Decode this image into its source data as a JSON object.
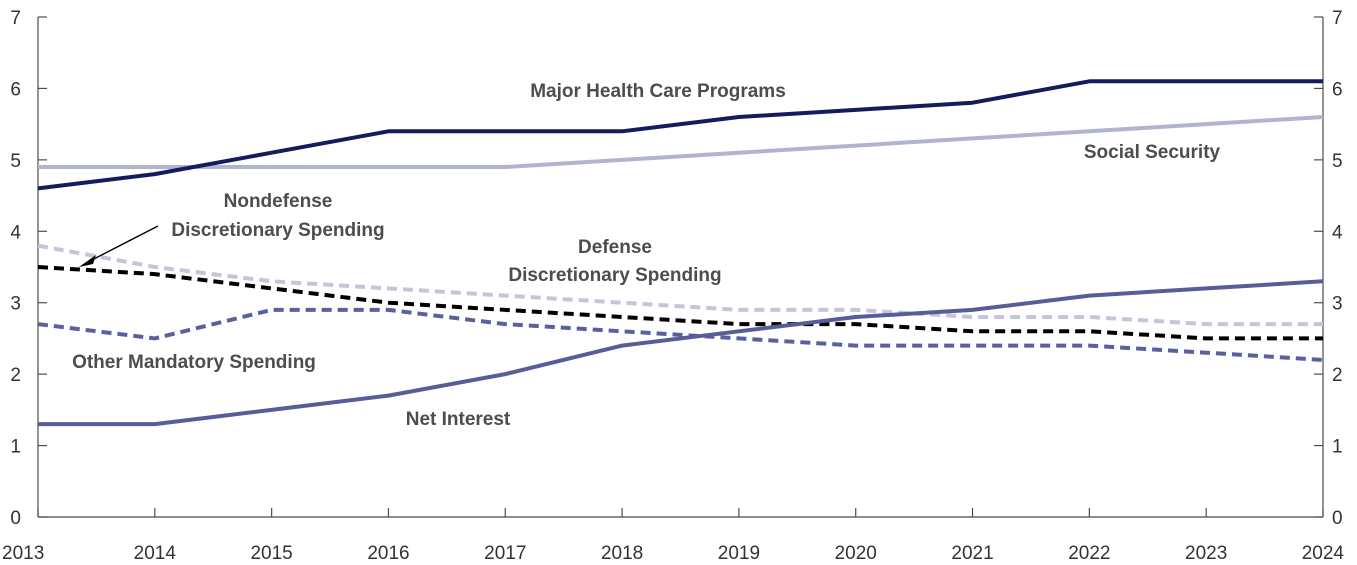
{
  "chart_data": {
    "type": "line",
    "x": [
      2013,
      2014,
      2015,
      2016,
      2017,
      2018,
      2019,
      2020,
      2021,
      2022,
      2023,
      2024
    ],
    "x_tick_labels": [
      "2013",
      "2014",
      "2015",
      "2016",
      "2017",
      "2018",
      "2019",
      "2020",
      "2021",
      "2022",
      "2023",
      "2024"
    ],
    "ylim": [
      0,
      7
    ],
    "y_ticks_left": [
      "0",
      "1",
      "2",
      "3",
      "4",
      "5",
      "6",
      "7"
    ],
    "y_ticks_right": [
      "0",
      "1",
      "2",
      "3",
      "4",
      "5",
      "6",
      "7"
    ],
    "grid": false,
    "series": [
      {
        "name": "Major Health Care Programs",
        "label": "Major Health Care Programs",
        "color": "#141b5e",
        "dash": "solid",
        "values": [
          4.6,
          4.8,
          5.1,
          5.4,
          5.4,
          5.4,
          5.6,
          5.7,
          5.8,
          6.1,
          6.1,
          6.1
        ]
      },
      {
        "name": "Social Security",
        "label": "Social Security",
        "color": "#b1b4cf",
        "dash": "solid",
        "values": [
          4.9,
          4.9,
          4.9,
          4.9,
          4.9,
          5.0,
          5.1,
          5.2,
          5.3,
          5.4,
          5.5,
          5.6
        ]
      },
      {
        "name": "Nondefense Discretionary Spending",
        "label_lines": [
          "Nondefense",
          "Discretionary Spending"
        ],
        "color": "#000000",
        "dash": "dashed",
        "values": [
          3.5,
          3.4,
          3.2,
          3.0,
          2.9,
          2.8,
          2.7,
          2.7,
          2.6,
          2.6,
          2.5,
          2.5
        ]
      },
      {
        "name": "Defense Discretionary Spending",
        "label_lines": [
          "Defense",
          "Discretionary Spending"
        ],
        "color": "#c3c5dc",
        "dash": "dashed",
        "values": [
          3.8,
          3.5,
          3.3,
          3.2,
          3.1,
          3.0,
          2.9,
          2.9,
          2.8,
          2.8,
          2.7,
          2.7
        ]
      },
      {
        "name": "Other Mandatory Spending",
        "label": "Other Mandatory Spending",
        "color": "#5a5f9e",
        "dash": "dashed",
        "values": [
          2.7,
          2.5,
          2.9,
          2.9,
          2.7,
          2.6,
          2.5,
          2.4,
          2.4,
          2.4,
          2.3,
          2.2
        ]
      },
      {
        "name": "Net Interest",
        "label": "Net Interest",
        "color": "#585c98",
        "dash": "solid",
        "values": [
          1.3,
          1.3,
          1.5,
          1.7,
          2.0,
          2.4,
          2.6,
          2.8,
          2.9,
          3.1,
          3.2,
          3.3
        ]
      }
    ]
  }
}
